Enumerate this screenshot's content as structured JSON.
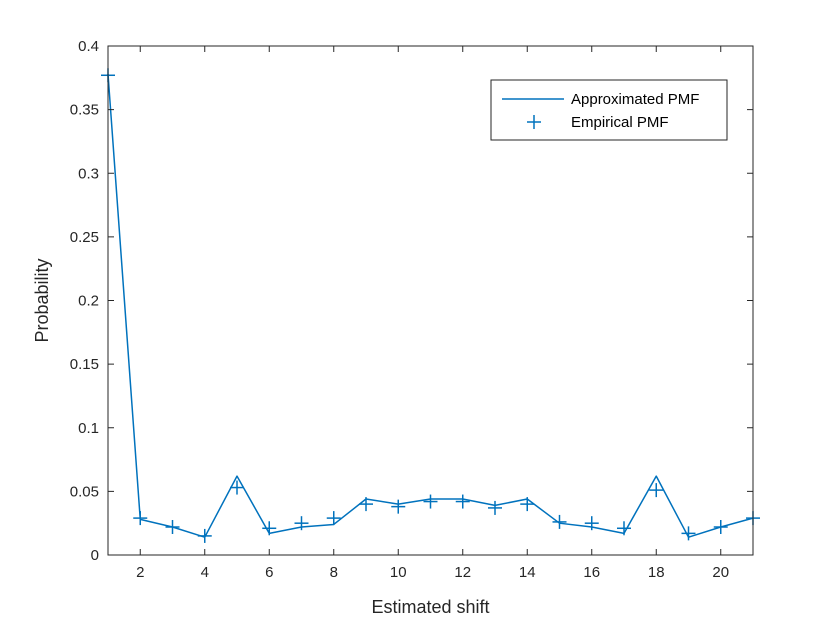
{
  "chart_data": {
    "type": "line",
    "title": "",
    "xlabel": "Estimated shift",
    "ylabel": "Probability",
    "xlim": [
      1,
      21
    ],
    "ylim": [
      0,
      0.4
    ],
    "xticks": [
      2,
      4,
      6,
      8,
      10,
      12,
      14,
      16,
      18,
      20
    ],
    "yticks": [
      0,
      0.05,
      0.1,
      0.15,
      0.2,
      0.25,
      0.3,
      0.35,
      0.4
    ],
    "ytick_labels": [
      "0",
      "0.05",
      "0.1",
      "0.15",
      "0.2",
      "0.25",
      "0.3",
      "0.35",
      "0.4"
    ],
    "grid": false,
    "legend_position": "top-right",
    "x": [
      1,
      2,
      3,
      4,
      5,
      6,
      7,
      8,
      9,
      10,
      11,
      12,
      13,
      14,
      15,
      16,
      17,
      18,
      19,
      20,
      21
    ],
    "series": [
      {
        "name": "Approximated PMF",
        "style": "line",
        "color": "#0072BD",
        "values": [
          0.378,
          0.028,
          0.022,
          0.014,
          0.062,
          0.017,
          0.022,
          0.024,
          0.044,
          0.04,
          0.044,
          0.044,
          0.039,
          0.044,
          0.025,
          0.022,
          0.017,
          0.062,
          0.014,
          0.022,
          0.029
        ]
      },
      {
        "name": "Empirical PMF",
        "style": "marker-plus",
        "color": "#0072BD",
        "values": [
          0.377,
          0.029,
          0.022,
          0.015,
          0.053,
          0.021,
          0.025,
          0.029,
          0.04,
          0.038,
          0.042,
          0.042,
          0.037,
          0.04,
          0.026,
          0.025,
          0.021,
          0.051,
          0.017,
          0.022,
          0.029
        ]
      }
    ]
  }
}
